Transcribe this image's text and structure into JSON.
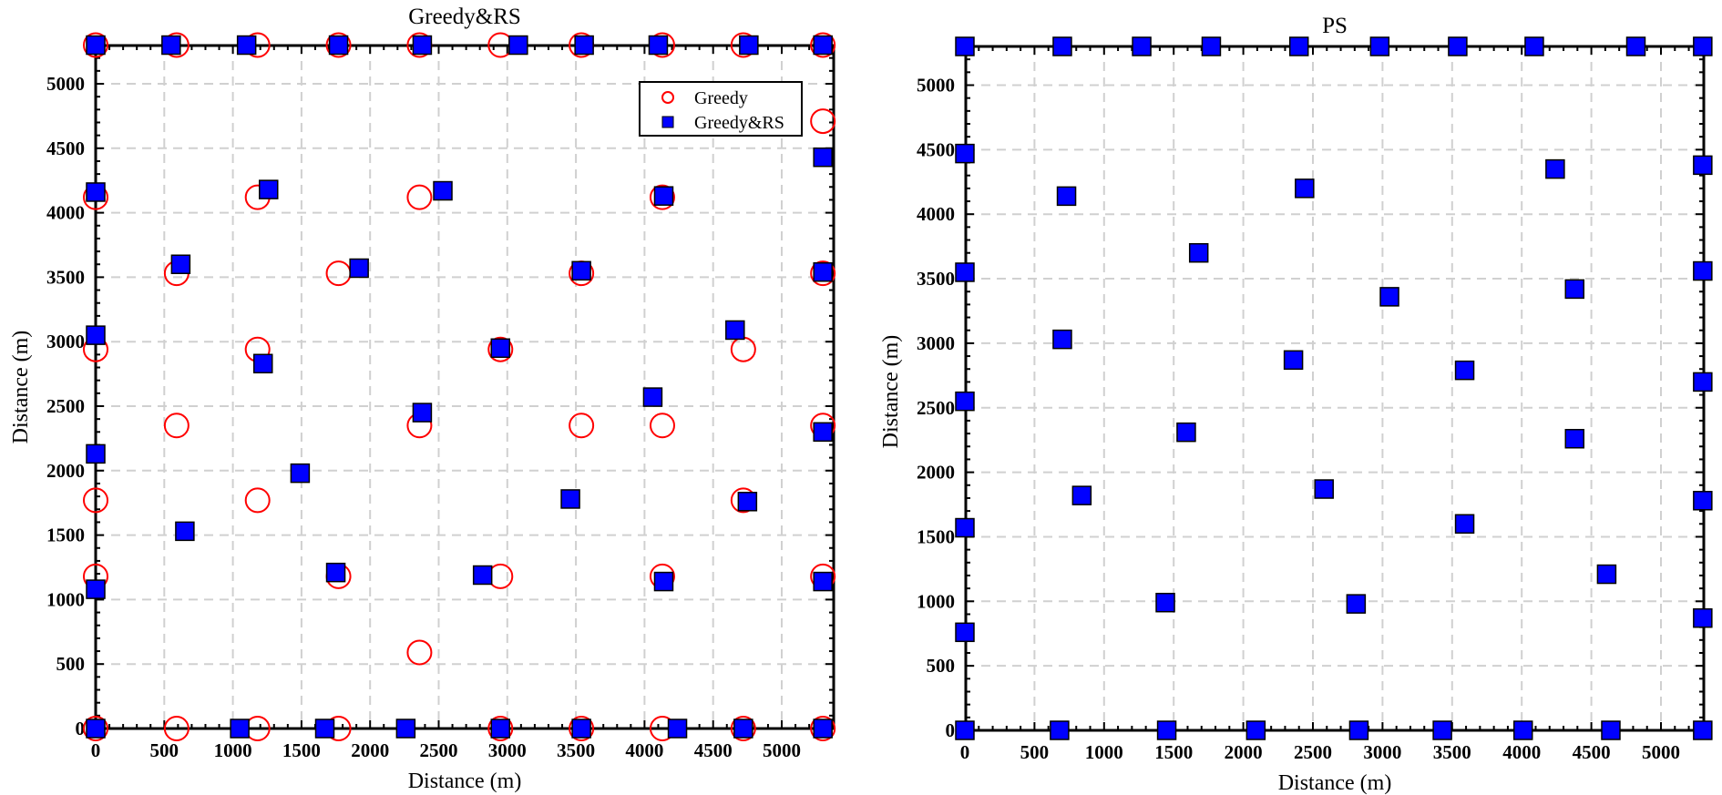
{
  "chart_data": [
    {
      "type": "scatter",
      "title": "Greedy&RS",
      "xlabel": "Distance (m)",
      "ylabel": "Distance (m)",
      "xlim": [
        -50,
        5350
      ],
      "ylim": [
        -50,
        5350
      ],
      "xticks": [
        0,
        500,
        1000,
        1500,
        2000,
        2500,
        3000,
        3500,
        4000,
        4500,
        5000
      ],
      "yticks": [
        0,
        500,
        1000,
        1500,
        2000,
        2500,
        3000,
        3500,
        4000,
        4500,
        5000
      ],
      "xtick_labels": [
        "0",
        "500",
        "1000",
        "1500",
        "2000",
        "2500",
        "3000",
        "3500",
        "4000",
        "4500",
        "5000"
      ],
      "ytick_labels": [
        "0",
        "500",
        "1000",
        "1500",
        "2000",
        "2500",
        "3000",
        "3500",
        "4000",
        "4500",
        "5000"
      ],
      "grid": true,
      "legend_position": "top-right",
      "series": [
        {
          "name": "Greedy",
          "marker": "circle-open",
          "color": "#ff0000",
          "points": [
            [
              0,
              5300
            ],
            [
              590,
              5300
            ],
            [
              1180,
              5300
            ],
            [
              1770,
              5300
            ],
            [
              2360,
              5300
            ],
            [
              2950,
              5300
            ],
            [
              3540,
              5300
            ],
            [
              4130,
              5300
            ],
            [
              4720,
              5300
            ],
            [
              5300,
              5300
            ],
            [
              5300,
              4710
            ],
            [
              0,
              4120
            ],
            [
              1180,
              4120
            ],
            [
              2360,
              4120
            ],
            [
              4130,
              4120
            ],
            [
              590,
              3530
            ],
            [
              1770,
              3530
            ],
            [
              3540,
              3530
            ],
            [
              5300,
              3530
            ],
            [
              0,
              2940
            ],
            [
              1180,
              2940
            ],
            [
              2950,
              2940
            ],
            [
              4720,
              2940
            ],
            [
              590,
              2350
            ],
            [
              2360,
              2350
            ],
            [
              3540,
              2350
            ],
            [
              4130,
              2350
            ],
            [
              5300,
              2350
            ],
            [
              0,
              1770
            ],
            [
              1180,
              1770
            ],
            [
              4720,
              1770
            ],
            [
              0,
              1180
            ],
            [
              1770,
              1180
            ],
            [
              2950,
              1180
            ],
            [
              4130,
              1180
            ],
            [
              5300,
              1180
            ],
            [
              2360,
              590
            ],
            [
              0,
              0
            ],
            [
              590,
              0
            ],
            [
              1180,
              0
            ],
            [
              1770,
              0
            ],
            [
              2950,
              0
            ],
            [
              3540,
              0
            ],
            [
              4130,
              0
            ],
            [
              4720,
              0
            ],
            [
              5300,
              0
            ]
          ]
        },
        {
          "name": "Greedy&RS",
          "marker": "square-filled",
          "color": "#0000ff",
          "points": [
            [
              0,
              5300
            ],
            [
              550,
              5300
            ],
            [
              1100,
              5300
            ],
            [
              1770,
              5300
            ],
            [
              2380,
              5300
            ],
            [
              3080,
              5300
            ],
            [
              3560,
              5300
            ],
            [
              4100,
              5300
            ],
            [
              4760,
              5300
            ],
            [
              5300,
              5300
            ],
            [
              5300,
              4430
            ],
            [
              0,
              4160
            ],
            [
              1260,
              4180
            ],
            [
              2530,
              4170
            ],
            [
              4140,
              4130
            ],
            [
              620,
              3600
            ],
            [
              1920,
              3570
            ],
            [
              3540,
              3550
            ],
            [
              5300,
              3540
            ],
            [
              0,
              3050
            ],
            [
              1220,
              2830
            ],
            [
              2950,
              2950
            ],
            [
              4660,
              3090
            ],
            [
              2380,
              2450
            ],
            [
              4060,
              2570
            ],
            [
              5300,
              2300
            ],
            [
              0,
              2130
            ],
            [
              1490,
              1980
            ],
            [
              3460,
              1780
            ],
            [
              4750,
              1760
            ],
            [
              650,
              1530
            ],
            [
              1750,
              1210
            ],
            [
              2820,
              1190
            ],
            [
              4140,
              1140
            ],
            [
              5300,
              1140
            ],
            [
              0,
              1080
            ],
            [
              0,
              0
            ],
            [
              1050,
              0
            ],
            [
              1670,
              0
            ],
            [
              2260,
              0
            ],
            [
              2950,
              0
            ],
            [
              3540,
              0
            ],
            [
              4240,
              0
            ],
            [
              4720,
              0
            ],
            [
              5300,
              0
            ]
          ]
        }
      ]
    },
    {
      "type": "scatter",
      "title": "PS",
      "xlabel": "Distance (m)",
      "ylabel": "Distance (m)",
      "xlim": [
        0,
        5350
      ],
      "ylim": [
        0,
        5350
      ],
      "xticks": [
        0,
        500,
        1000,
        1500,
        2000,
        2500,
        3000,
        3500,
        4000,
        4500,
        5000
      ],
      "yticks": [
        0,
        500,
        1000,
        1500,
        2000,
        2500,
        3000,
        3500,
        4000,
        4500,
        5000
      ],
      "xtick_labels": [
        "0",
        "500",
        "1000",
        "1500",
        "2000",
        "2500",
        "3000",
        "3500",
        "4000",
        "4500",
        "5000"
      ],
      "ytick_labels": [
        "0",
        "500",
        "1000",
        "1500",
        "2000",
        "2500",
        "3000",
        "3500",
        "4000",
        "4500",
        "5000"
      ],
      "grid": true,
      "series": [
        {
          "marker": "square-filled",
          "color": "#0000ff",
          "points": [
            [
              0,
              5300
            ],
            [
              700,
              5300
            ],
            [
              1270,
              5300
            ],
            [
              1770,
              5300
            ],
            [
              2400,
              5300
            ],
            [
              2980,
              5300
            ],
            [
              3540,
              5300
            ],
            [
              4090,
              5300
            ],
            [
              4820,
              5300
            ],
            [
              5300,
              5300
            ],
            [
              0,
              4470
            ],
            [
              5300,
              4380
            ],
            [
              730,
              4140
            ],
            [
              2440,
              4200
            ],
            [
              4240,
              4350
            ],
            [
              1680,
              3700
            ],
            [
              3050,
              3360
            ],
            [
              4380,
              3420
            ],
            [
              0,
              3550
            ],
            [
              5300,
              3560
            ],
            [
              700,
              3030
            ],
            [
              2360,
              2870
            ],
            [
              3590,
              2790
            ],
            [
              0,
              2550
            ],
            [
              5300,
              2700
            ],
            [
              1590,
              2310
            ],
            [
              4380,
              2260
            ],
            [
              840,
              1820
            ],
            [
              2580,
              1870
            ],
            [
              0,
              1570
            ],
            [
              3590,
              1600
            ],
            [
              5300,
              1780
            ],
            [
              4610,
              1210
            ],
            [
              1440,
              990
            ],
            [
              2810,
              980
            ],
            [
              5300,
              870
            ],
            [
              0,
              760
            ],
            [
              0,
              0
            ],
            [
              680,
              0
            ],
            [
              1450,
              0
            ],
            [
              2090,
              0
            ],
            [
              2830,
              0
            ],
            [
              3430,
              0
            ],
            [
              4010,
              0
            ],
            [
              4640,
              0
            ],
            [
              5300,
              0
            ]
          ]
        }
      ]
    }
  ]
}
